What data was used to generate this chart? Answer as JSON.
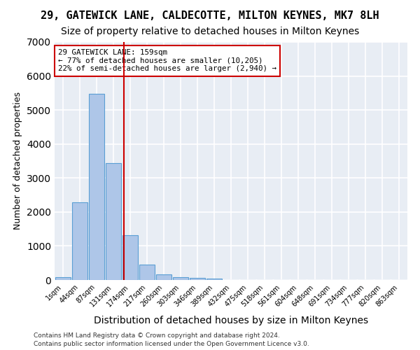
{
  "title1": "29, GATEWICK LANE, CALDECOTTE, MILTON KEYNES, MK7 8LH",
  "title2": "Size of property relative to detached houses in Milton Keynes",
  "xlabel": "Distribution of detached houses by size in Milton Keynes",
  "ylabel": "Number of detached properties",
  "annotation_title": "29 GATEWICK LANE: 159sqm",
  "annotation_line1": "← 77% of detached houses are smaller (10,205)",
  "annotation_line2": "22% of semi-detached houses are larger (2,940) →",
  "footnote1": "Contains HM Land Registry data © Crown copyright and database right 2024.",
  "footnote2": "Contains public sector information licensed under the Open Government Licence v3.0.",
  "bin_labels": [
    "1sqm",
    "44sqm",
    "87sqm",
    "131sqm",
    "174sqm",
    "217sqm",
    "260sqm",
    "303sqm",
    "346sqm",
    "389sqm",
    "432sqm",
    "475sqm",
    "518sqm",
    "561sqm",
    "604sqm",
    "648sqm",
    "691sqm",
    "734sqm",
    "777sqm",
    "820sqm",
    "863sqm"
  ],
  "bar_values": [
    75,
    2280,
    5480,
    3430,
    1310,
    460,
    155,
    90,
    55,
    40,
    0,
    0,
    0,
    0,
    0,
    0,
    0,
    0,
    0,
    0,
    0
  ],
  "bar_color": "#aec6e8",
  "bar_edge_color": "#5a9fd4",
  "vline_x": 3.62,
  "vline_color": "#cc0000",
  "ylim": [
    0,
    7000
  ],
  "yticks": [
    0,
    1000,
    2000,
    3000,
    4000,
    5000,
    6000,
    7000
  ],
  "background_color": "#e8edf4",
  "grid_color": "#ffffff",
  "title1_fontsize": 11,
  "title2_fontsize": 10,
  "xlabel_fontsize": 10,
  "ylabel_fontsize": 9
}
